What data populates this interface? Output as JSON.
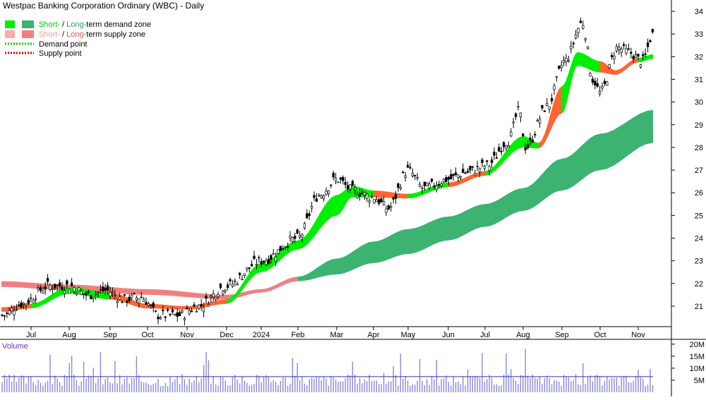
{
  "title": "Westpac Banking Corporation Ordinary (WBC) - Daily",
  "legend": {
    "demand_zone": {
      "short": "Short-",
      "sep": " / ",
      "long": "Long-",
      "rest": "term demand zone"
    },
    "supply_zone": {
      "short": "Short-",
      "sep": " / ",
      "long": "Long-",
      "rest": "term supply zone"
    },
    "demand_point": "Demand point",
    "supply_point": "Supply point"
  },
  "volume_label": "Volume",
  "colors": {
    "short_demand": "#00ee00",
    "long_demand": "#3cb371",
    "short_supply": "#ffaaaa",
    "long_supply": "#f08080",
    "short_supply_dark": "#ff6633",
    "demand_point": "#00cc00",
    "supply_point": "#dd0000",
    "volume_bar": "#8888dd",
    "volume_avg": "#3333aa",
    "volume_text": "#6633aa",
    "candle": "#000000"
  },
  "chart_data": [
    {
      "type": "candlestick",
      "title": "Westpac Banking Corporation Ordinary (WBC) - Daily",
      "x_tick_labels": [
        "Jul",
        "Aug",
        "Sep",
        "Oct",
        "Nov",
        "Dec",
        "2024",
        "Feb",
        "Mar",
        "Apr",
        "May",
        "Jun",
        "Jul",
        "Aug",
        "Sep",
        "Oct",
        "Nov"
      ],
      "y_tick_labels": [
        "21",
        "22",
        "23",
        "24",
        "25",
        "26",
        "27",
        "28",
        "29",
        "30",
        "31",
        "32",
        "33",
        "34"
      ],
      "ylim": [
        20,
        34.5
      ],
      "y_scale": "linear",
      "grid": false,
      "price_anchors": [
        {
          "date": "Jun",
          "close": 20.6
        },
        {
          "date": "Jul",
          "close": 21.1
        },
        {
          "date": "Jul",
          "close": 21.9
        },
        {
          "date": "Aug",
          "close": 21.9
        },
        {
          "date": "Aug",
          "close": 21.5
        },
        {
          "date": "Sep",
          "close": 21.7
        },
        {
          "date": "Sep",
          "close": 21.3
        },
        {
          "date": "Oct",
          "close": 21.4
        },
        {
          "date": "Oct",
          "close": 20.6
        },
        {
          "date": "Nov",
          "close": 20.6
        },
        {
          "date": "Nov",
          "close": 21.0
        },
        {
          "date": "Dec",
          "close": 21.9
        },
        {
          "date": "2024",
          "close": 23.0
        },
        {
          "date": "Feb",
          "close": 24.0
        },
        {
          "date": "Feb",
          "close": 25.9
        },
        {
          "date": "Mar",
          "close": 26.6
        },
        {
          "date": "Mar",
          "close": 26.1
        },
        {
          "date": "Apr",
          "close": 25.8
        },
        {
          "date": "Apr",
          "close": 25.3
        },
        {
          "date": "May",
          "close": 27.0
        },
        {
          "date": "May",
          "close": 26.2
        },
        {
          "date": "Jun",
          "close": 26.6
        },
        {
          "date": "Jun",
          "close": 26.9
        },
        {
          "date": "Jul",
          "close": 27.2
        },
        {
          "date": "Jul",
          "close": 28.3
        },
        {
          "date": "Aug",
          "close": 29.6
        },
        {
          "date": "Aug",
          "close": 28.0
        },
        {
          "date": "Sep",
          "close": 29.8
        },
        {
          "date": "Sep",
          "close": 31.8
        },
        {
          "date": "Sep",
          "close": 33.5
        },
        {
          "date": "Oct",
          "close": 31.0
        },
        {
          "date": "Oct",
          "close": 30.4
        },
        {
          "date": "Oct",
          "close": 32.4
        },
        {
          "date": "Nov",
          "close": 32.2
        },
        {
          "date": "Nov",
          "close": 31.8
        },
        {
          "date": "Nov",
          "close": 33.0
        }
      ],
      "short_term_zone": [
        {
          "date": "Jun",
          "upper": 20.95,
          "lower": 20.75,
          "state": "supply"
        },
        {
          "date": "Jul",
          "upper": 21.1,
          "lower": 20.9,
          "state": "demand"
        },
        {
          "date": "Aug",
          "upper": 21.85,
          "lower": 21.55,
          "state": "demand"
        },
        {
          "date": "Sep",
          "upper": 21.6,
          "lower": 21.3,
          "state": "supply"
        },
        {
          "date": "Oct",
          "upper": 21.1,
          "lower": 20.9,
          "state": "supply"
        },
        {
          "date": "Nov",
          "upper": 21.0,
          "lower": 20.85,
          "state": "supply"
        },
        {
          "date": "Dec",
          "upper": 21.3,
          "lower": 21.1,
          "state": "demand"
        },
        {
          "date": "2024",
          "upper": 22.9,
          "lower": 22.5,
          "state": "demand"
        },
        {
          "date": "Feb",
          "upper": 23.9,
          "lower": 23.5,
          "state": "demand"
        },
        {
          "date": "Mar",
          "upper": 25.9,
          "lower": 25.0,
          "state": "demand"
        },
        {
          "date": "Mar",
          "upper": 26.3,
          "lower": 25.8,
          "state": "demand"
        },
        {
          "date": "Apr",
          "upper": 26.1,
          "lower": 25.8,
          "state": "supply"
        },
        {
          "date": "May",
          "upper": 25.95,
          "lower": 25.75,
          "state": "demand"
        },
        {
          "date": "Jun",
          "upper": 26.45,
          "lower": 26.25,
          "state": "supply"
        },
        {
          "date": "Jul",
          "upper": 26.95,
          "lower": 26.75,
          "state": "demand"
        },
        {
          "date": "Aug",
          "upper": 28.5,
          "lower": 28.0,
          "state": "demand"
        },
        {
          "date": "Aug",
          "upper": 28.2,
          "lower": 27.95,
          "state": "supply"
        },
        {
          "date": "Sep",
          "upper": 30.7,
          "lower": 29.5,
          "state": "demand"
        },
        {
          "date": "Sep",
          "upper": 32.2,
          "lower": 31.6,
          "state": "demand"
        },
        {
          "date": "Oct",
          "upper": 31.8,
          "lower": 31.3,
          "state": "supply"
        },
        {
          "date": "Oct",
          "upper": 31.4,
          "lower": 31.2,
          "state": "supply"
        },
        {
          "date": "Nov",
          "upper": 31.95,
          "lower": 31.75,
          "state": "demand"
        },
        {
          "date": "Nov",
          "upper": 32.1,
          "lower": 31.9,
          "state": "demand"
        }
      ],
      "long_term_zone": [
        {
          "date": "Jun",
          "upper": 22.1,
          "lower": 21.85,
          "state": "supply"
        },
        {
          "date": "Aug",
          "upper": 21.95,
          "lower": 21.7,
          "state": "supply"
        },
        {
          "date": "Oct",
          "upper": 21.75,
          "lower": 21.5,
          "state": "supply"
        },
        {
          "date": "Dec",
          "upper": 21.5,
          "lower": 21.3,
          "state": "supply"
        },
        {
          "date": "2024",
          "upper": 21.75,
          "lower": 21.6,
          "state": "supply"
        },
        {
          "date": "Feb",
          "upper": 22.3,
          "lower": 22.1,
          "state": "demand"
        },
        {
          "date": "Mar",
          "upper": 23.1,
          "lower": 22.4,
          "state": "demand"
        },
        {
          "date": "Apr",
          "upper": 23.85,
          "lower": 22.9,
          "state": "demand"
        },
        {
          "date": "May",
          "upper": 24.4,
          "lower": 23.3,
          "state": "demand"
        },
        {
          "date": "Jun",
          "upper": 24.95,
          "lower": 23.9,
          "state": "demand"
        },
        {
          "date": "Jul",
          "upper": 25.5,
          "lower": 24.5,
          "state": "demand"
        },
        {
          "date": "Aug",
          "upper": 26.2,
          "lower": 25.2,
          "state": "demand"
        },
        {
          "date": "Sep",
          "upper": 27.5,
          "lower": 26.1,
          "state": "demand"
        },
        {
          "date": "Oct",
          "upper": 28.6,
          "lower": 27.0,
          "state": "demand"
        },
        {
          "date": "Nov",
          "upper": 29.65,
          "lower": 28.2,
          "state": "demand"
        }
      ]
    },
    {
      "type": "bar",
      "title": "Volume",
      "y_tick_labels": [
        "20M",
        "15M",
        "10M",
        "5M"
      ],
      "ylim": [
        0,
        22
      ],
      "unit": "M",
      "average_level": 6.5,
      "x_tick_labels": [
        "Jul",
        "Aug",
        "Sep",
        "Oct",
        "Nov",
        "Dec",
        "2024",
        "Feb",
        "Mar",
        "Apr",
        "May",
        "Jun",
        "Jul",
        "Aug",
        "Sep",
        "Oct",
        "Nov"
      ]
    }
  ]
}
